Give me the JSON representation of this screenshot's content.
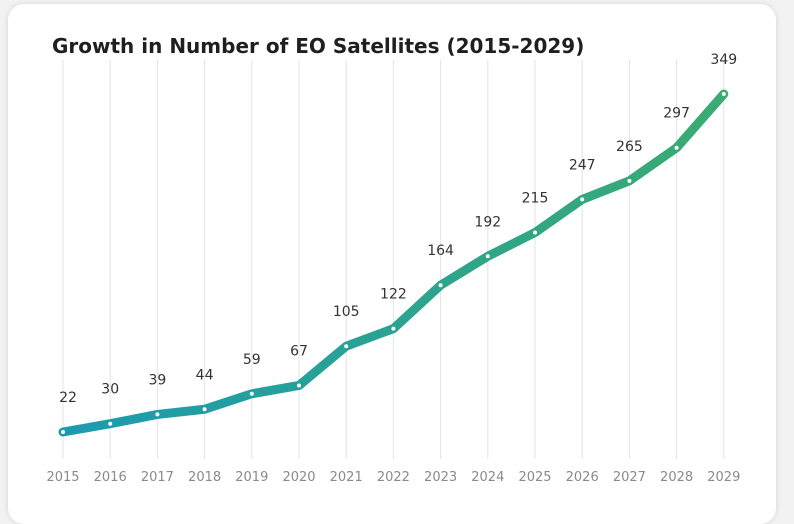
{
  "chart_data": {
    "type": "line",
    "title": "Growth in Number of EO Satellites (2015-2029)",
    "categories": [
      "2015",
      "2016",
      "2017",
      "2018",
      "2019",
      "2020",
      "2021",
      "2022",
      "2023",
      "2024",
      "2025",
      "2026",
      "2027",
      "2028",
      "2029"
    ],
    "series": [
      {
        "values": [
          22,
          30,
          39,
          44,
          59,
          67,
          105,
          122,
          164,
          192,
          215,
          247,
          265,
          297,
          349
        ]
      }
    ],
    "ylim": [
      0,
      349
    ],
    "grid": "vertical",
    "legend": "none",
    "colors": {
      "start": "#1b9bb0",
      "end": "#3aab72",
      "gridline": "#e3e3e3"
    }
  }
}
